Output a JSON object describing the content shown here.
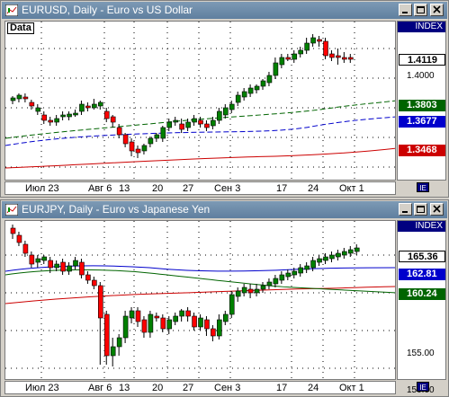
{
  "windows": [
    {
      "title": "EURUSD, Daily - Euro vs US Dollar",
      "symbol_label": "Data",
      "index_label": "INDEX",
      "y_ticks": [
        "1.4000"
      ],
      "value_tags": [
        {
          "text": "1.4119",
          "bg": "#ffffff",
          "fg": "#000000"
        },
        {
          "text": "1.3803",
          "bg": "#006400",
          "fg": "#ffffff"
        },
        {
          "text": "1.3677",
          "bg": "#0000cc",
          "fg": "#ffffff"
        },
        {
          "text": "1.3468",
          "bg": "#cc0000",
          "fg": "#ffffff"
        }
      ],
      "x_labels": [
        "Июл 23",
        "Авг 6",
        "13",
        "20",
        "27",
        "Сен 3",
        "17",
        "24",
        "Окт 1"
      ],
      "corner_button": "IE"
    },
    {
      "title": "EURJPY, Daily - Euro vs Japanese Yen",
      "symbol_label": "",
      "index_label": "INDEX",
      "y_ticks": [
        "155.00",
        "150.00"
      ],
      "value_tags": [
        {
          "text": "165.36",
          "bg": "#ffffff",
          "fg": "#000000"
        },
        {
          "text": "162.81",
          "bg": "#0000cc",
          "fg": "#ffffff"
        },
        {
          "text": "160.24",
          "bg": "#006400",
          "fg": "#ffffff"
        }
      ],
      "x_labels": [
        "Июл 23",
        "Авг 6",
        "13",
        "20",
        "27",
        "Сен 3",
        "17",
        "24",
        "Окт 1"
      ],
      "corner_button": "IE"
    }
  ],
  "colors": {
    "bull": "#008000",
    "bear": "#ff0000",
    "ma_green": "#006400",
    "ma_blue": "#0000cc",
    "ma_red": "#cc0000",
    "title_bar": "#6f8cab"
  }
}
